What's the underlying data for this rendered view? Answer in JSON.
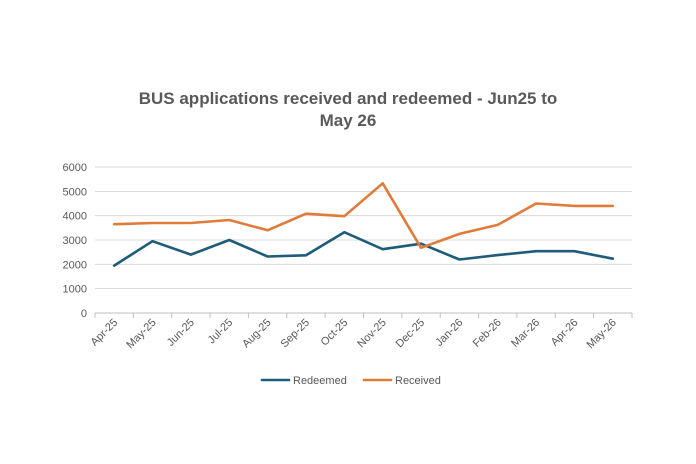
{
  "chart_data": {
    "type": "line",
    "title_line1": "BUS applications received and redeemed - Jun25 to",
    "title_line2": "May 26",
    "categories": [
      "Apr-25",
      "May-25",
      "Jun-25",
      "Jul-25",
      "Aug-25",
      "Sep-25",
      "Oct-25",
      "Nov-25",
      "Dec-25",
      "Jan-26",
      "Feb-26",
      "Mar-26",
      "Apr-26",
      "May-26"
    ],
    "series": [
      {
        "name": "Redeemed",
        "color": "#1f5b7a",
        "values": [
          1950,
          2950,
          2400,
          3000,
          2320,
          2370,
          3320,
          2620,
          2850,
          2200,
          2380,
          2540,
          2540,
          2230
        ]
      },
      {
        "name": "Received",
        "color": "#e07b39",
        "values": [
          3650,
          3700,
          3700,
          3820,
          3400,
          4080,
          3980,
          5330,
          2680,
          3250,
          3620,
          4500,
          4400,
          4400
        ]
      }
    ],
    "y_ticks": [
      "0",
      "1000",
      "2000",
      "3000",
      "4000",
      "5000",
      "6000"
    ],
    "ylim": [
      0,
      6000
    ],
    "grid": true,
    "legend_position": "bottom"
  }
}
